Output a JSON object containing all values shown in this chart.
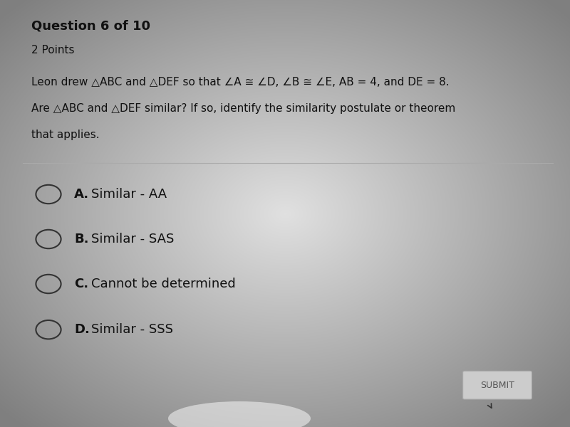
{
  "bg_color_center": "#e8e8e8",
  "bg_color_edge": "#888888",
  "card_color": "#e8e8e8",
  "question_number": "Question 6 of 10",
  "points": "2 Points",
  "question_line1": "Leon drew △ABC and △DEF so that ∠A ≅ ∠D, ∠B ≅ ∠E, AB = 4, and DE = 8.",
  "question_line2": "Are △ABC and △DEF similar? If so, identify the similarity postulate or theorem",
  "question_line3": "that applies.",
  "choices": [
    {
      "label": "A.",
      "text": "Similar - AA"
    },
    {
      "label": "B.",
      "text": "Similar - SAS"
    },
    {
      "label": "C.",
      "text": "Cannot be determined"
    },
    {
      "label": "D.",
      "text": "Similar - SSS"
    }
  ],
  "submit_button_text": "SUBMIT",
  "title_fontsize": 13,
  "points_fontsize": 11,
  "question_fontsize": 11,
  "choice_label_fontsize": 13,
  "choice_text_fontsize": 13,
  "submit_fontsize": 9
}
